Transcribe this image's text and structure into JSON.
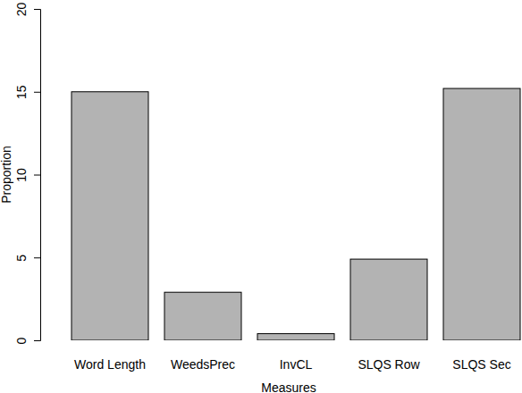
{
  "chart_data": {
    "type": "bar",
    "x_label": "Measures",
    "y_label": "Proportion",
    "categories": [
      "Word Length",
      "WeedsPrec",
      "InvCL",
      "SLQS Row",
      "SLQS Sec"
    ],
    "values": [
      15.0,
      2.9,
      0.4,
      4.9,
      15.2
    ],
    "color": "#b3b3b3",
    "ylim": [
      0,
      20
    ],
    "yticks": [
      0,
      5,
      10,
      15,
      20
    ]
  }
}
